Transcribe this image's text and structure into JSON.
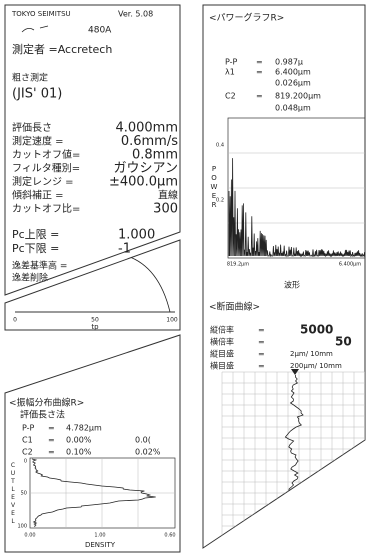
{
  "receipt": {
    "brand": "TOKYO SEIMITSU",
    "version": "Ver. 5.08",
    "model": "480A",
    "operator": "測定者 =Accretech",
    "mode": "粗さ測定",
    "standard": "(JIS' 01)",
    "params": [
      [
        "評価長さ",
        "4.000mm"
      ],
      [
        "測定速度 =",
        "0.6mm/s"
      ],
      [
        "カットオフ値=",
        "0.8mm"
      ],
      [
        "フィルタ種別=",
        "ガウシアン"
      ],
      [
        "測定レンジ =",
        "±400.0μm"
      ],
      [
        "傾斜補正 =",
        "直線"
      ],
      [
        "カットオフ比=",
        "300"
      ]
    ],
    "pc": [
      [
        "Pc上限 =",
        "1.000"
      ],
      [
        "Pc下限 =",
        "-1"
      ]
    ],
    "extra": [
      "逸差基準高 =",
      "逸差削除"
    ]
  },
  "bearing_curve": {
    "xticks": [
      "0",
      "50",
      "100"
    ],
    "xlabel": "tp"
  },
  "amplitude": {
    "title": "<振幅分布曲線R>",
    "method": "評価長さ法",
    "rows": [
      [
        "P-P",
        "=",
        "4.782μm"
      ],
      [
        "C1",
        "=",
        "0.00%",
        "0.0("
      ],
      [
        "C2",
        "=",
        "0.10%",
        "0.02%"
      ]
    ],
    "ylabel": "CUTLEVEL",
    "yticks": [
      "0",
      "50",
      "100"
    ],
    "xticks": [
      "0.00",
      "1.00",
      "0.60"
    ],
    "xlabel": "DENSITY"
  },
  "power": {
    "title": "<パワーグラフR>",
    "rows": [
      [
        "P-P",
        "=",
        "0.987μ"
      ],
      [
        "λ1",
        "=",
        "6.400μm"
      ],
      [
        "0.026μm"
      ],
      [
        "C2",
        "=",
        "819.200μm"
      ],
      [
        "0.048μm"
      ]
    ],
    "ylabel": "POWER",
    "yticks": [
      "0.4",
      "0.2"
    ],
    "xticks": [
      "819.2μm",
      "6.400μm"
    ],
    "xlabel": "波形"
  },
  "profile": {
    "title": "<断面曲線>",
    "rows": [
      [
        "縦倍率",
        "=",
        "5000"
      ],
      [
        "横倍率",
        "=",
        "50"
      ],
      [
        "縦目盛",
        "=",
        "2μm/ 10mm"
      ],
      [
        "横目盛",
        "=",
        "200μm/ 10mm"
      ]
    ]
  }
}
